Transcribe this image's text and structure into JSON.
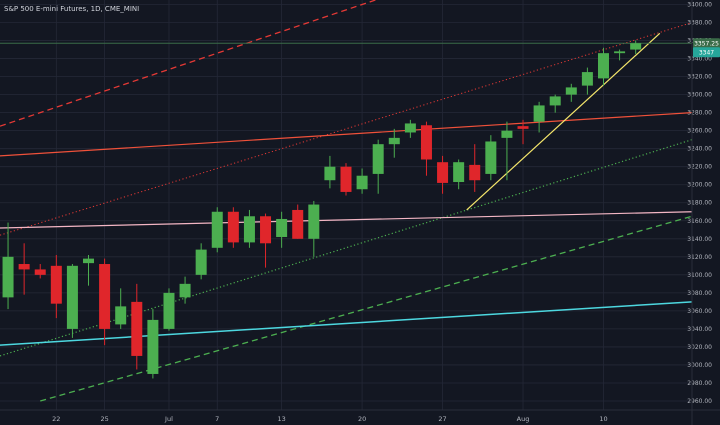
{
  "chart_data": {
    "type": "candlestick",
    "title": "S&P 500 E-mini Futures, 1D, CME_MINI",
    "y_ticks": [
      2960,
      2980,
      3000,
      3020,
      3040,
      3060,
      3080,
      3100,
      3120,
      3140,
      3160,
      3180,
      3200,
      3220,
      3240,
      3260,
      3280,
      3300,
      3320,
      3340,
      3360,
      3380,
      3400
    ],
    "ylim": [
      2950,
      3405
    ],
    "x_ticks": [
      {
        "label": "22",
        "day": 3
      },
      {
        "label": "25",
        "day": 6
      },
      {
        "label": "Jul",
        "day": 10
      },
      {
        "label": "7",
        "day": 13
      },
      {
        "label": "13",
        "day": 17
      },
      {
        "label": "20",
        "day": 22
      },
      {
        "label": "27",
        "day": 27
      },
      {
        "label": "Aug",
        "day": 32
      },
      {
        "label": "10",
        "day": 37
      }
    ],
    "xlim": [
      -0.5,
      42.5
    ],
    "price_tags": [
      {
        "label": "3357.25",
        "value": 3357,
        "color": "#3a6b48"
      },
      {
        "label": "3347",
        "value": 3347,
        "color": "#26a69a"
      }
    ],
    "grid": true,
    "candles": [
      {
        "day": 0,
        "o": 3075,
        "h": 3158,
        "l": 3062,
        "c": 3120
      },
      {
        "day": 1,
        "o": 3112,
        "h": 3135,
        "l": 3078,
        "c": 3106
      },
      {
        "day": 2,
        "o": 3106,
        "h": 3112,
        "l": 3096,
        "c": 3100
      },
      {
        "day": 3,
        "o": 3110,
        "h": 3122,
        "l": 3052,
        "c": 3068
      },
      {
        "day": 4,
        "o": 3040,
        "h": 3112,
        "l": 3030,
        "c": 3110
      },
      {
        "day": 5,
        "o": 3113,
        "h": 3122,
        "l": 3088,
        "c": 3118
      },
      {
        "day": 6,
        "o": 3112,
        "h": 3118,
        "l": 3022,
        "c": 3040
      },
      {
        "day": 7,
        "o": 3045,
        "h": 3085,
        "l": 3040,
        "c": 3065
      },
      {
        "day": 8,
        "o": 3070,
        "h": 3090,
        "l": 2995,
        "c": 3010
      },
      {
        "day": 9,
        "o": 2990,
        "h": 3062,
        "l": 2985,
        "c": 3050
      },
      {
        "day": 10,
        "o": 3040,
        "h": 3085,
        "l": 3038,
        "c": 3080
      },
      {
        "day": 11,
        "o": 3075,
        "h": 3098,
        "l": 3068,
        "c": 3090
      },
      {
        "day": 12,
        "o": 3100,
        "h": 3135,
        "l": 3095,
        "c": 3128
      },
      {
        "day": 13,
        "o": 3130,
        "h": 3175,
        "l": 3125,
        "c": 3170
      },
      {
        "day": 14,
        "o": 3170,
        "h": 3175,
        "l": 3130,
        "c": 3136
      },
      {
        "day": 15,
        "o": 3136,
        "h": 3172,
        "l": 3130,
        "c": 3165
      },
      {
        "day": 16,
        "o": 3165,
        "h": 3168,
        "l": 3108,
        "c": 3135
      },
      {
        "day": 17,
        "o": 3142,
        "h": 3170,
        "l": 3130,
        "c": 3162
      },
      {
        "day": 18,
        "o": 3172,
        "h": 3178,
        "l": 3140,
        "c": 3140
      },
      {
        "day": 19,
        "o": 3140,
        "h": 3182,
        "l": 3120,
        "c": 3178
      },
      {
        "day": 20,
        "o": 3205,
        "h": 3232,
        "l": 3196,
        "c": 3220
      },
      {
        "day": 21,
        "o": 3220,
        "h": 3224,
        "l": 3188,
        "c": 3192
      },
      {
        "day": 22,
        "o": 3195,
        "h": 3218,
        "l": 3190,
        "c": 3210
      },
      {
        "day": 23,
        "o": 3212,
        "h": 3250,
        "l": 3190,
        "c": 3245
      },
      {
        "day": 24,
        "o": 3245,
        "h": 3262,
        "l": 3230,
        "c": 3252
      },
      {
        "day": 25,
        "o": 3258,
        "h": 3272,
        "l": 3252,
        "c": 3268
      },
      {
        "day": 26,
        "o": 3266,
        "h": 3270,
        "l": 3210,
        "c": 3228
      },
      {
        "day": 27,
        "o": 3225,
        "h": 3232,
        "l": 3190,
        "c": 3202
      },
      {
        "day": 28,
        "o": 3203,
        "h": 3228,
        "l": 3195,
        "c": 3225
      },
      {
        "day": 29,
        "o": 3222,
        "h": 3245,
        "l": 3192,
        "c": 3205
      },
      {
        "day": 30,
        "o": 3212,
        "h": 3255,
        "l": 3205,
        "c": 3248
      },
      {
        "day": 31,
        "o": 3252,
        "h": 3270,
        "l": 3205,
        "c": 3260
      },
      {
        "day": 32,
        "o": 3265,
        "h": 3272,
        "l": 3245,
        "c": 3262
      },
      {
        "day": 33,
        "o": 3270,
        "h": 3292,
        "l": 3258,
        "c": 3288
      },
      {
        "day": 34,
        "o": 3288,
        "h": 3300,
        "l": 3280,
        "c": 3298
      },
      {
        "day": 35,
        "o": 3300,
        "h": 3312,
        "l": 3292,
        "c": 3308
      },
      {
        "day": 36,
        "o": 3310,
        "h": 3330,
        "l": 3300,
        "c": 3325
      },
      {
        "day": 37,
        "o": 3318,
        "h": 3352,
        "l": 3310,
        "c": 3346
      },
      {
        "day": 38,
        "o": 3346,
        "h": 3350,
        "l": 3338,
        "c": 3348
      },
      {
        "day": 39,
        "o": 3350,
        "h": 3360,
        "l": 3345,
        "c": 3357
      }
    ],
    "trend_lines": [
      {
        "name": "red-dashed-channel-top",
        "color": "#e53935",
        "style": "dashed",
        "width": 1.3,
        "p1": [
          -0.5,
          3265
        ],
        "p2": [
          24,
          3412
        ]
      },
      {
        "name": "red-dotted-channel",
        "color": "#e53935",
        "style": "dotted",
        "width": 1,
        "p1": [
          -0.5,
          3144
        ],
        "p2": [
          42.5,
          3380
        ]
      },
      {
        "name": "orange-resistance",
        "color": "#f0513a",
        "style": "solid",
        "width": 1.2,
        "p1": [
          -0.5,
          3232
        ],
        "p2": [
          42.5,
          3280
        ]
      },
      {
        "name": "green-dotted-support",
        "color": "#4caf50",
        "style": "dotted",
        "width": 1.2,
        "p1": [
          -0.5,
          3010
        ],
        "p2": [
          42.5,
          3250
        ]
      },
      {
        "name": "green-dashed-support",
        "color": "#4caf50",
        "style": "dashed",
        "width": 1.3,
        "p1": [
          2,
          2960
        ],
        "p2": [
          42.5,
          3165
        ]
      },
      {
        "name": "pink-support",
        "color": "#f3b6c4",
        "style": "solid",
        "width": 1.2,
        "p1": [
          -0.5,
          3152
        ],
        "p2": [
          42.5,
          3170
        ]
      },
      {
        "name": "cyan-support",
        "color": "#4dd8e0",
        "style": "solid",
        "width": 1.5,
        "p1": [
          -0.5,
          3022
        ],
        "p2": [
          42.5,
          3070
        ]
      },
      {
        "name": "yellow-rising-trend",
        "color": "#f5e66b",
        "style": "solid",
        "width": 1.2,
        "p1": [
          28.5,
          3172
        ],
        "p2": [
          40.5,
          3368
        ]
      },
      {
        "name": "green-last-price-line",
        "color": "#3a6b48",
        "style": "solid",
        "width": 1,
        "p1": [
          -0.5,
          3357
        ],
        "p2": [
          42.5,
          3357
        ]
      }
    ]
  }
}
